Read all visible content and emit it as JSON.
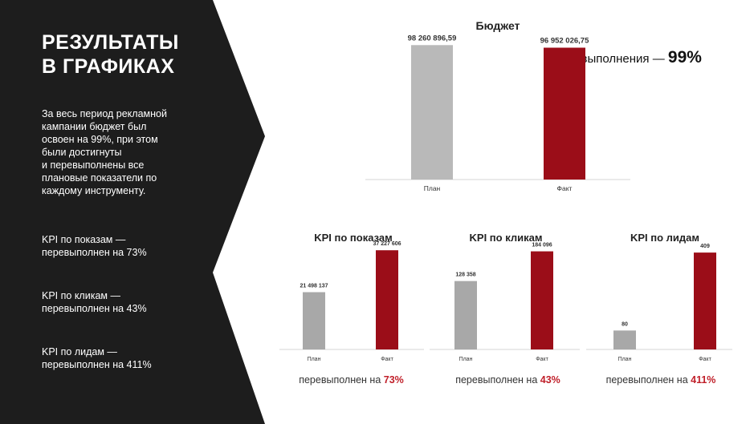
{
  "left_panel": {
    "title_line1": "РЕЗУЛЬТАТЫ",
    "title_line2": "В ГРАФИКАХ",
    "intro_lines": [
      "За весь период рекламной",
      "кампании бюджет был",
      "освоен на 99%, при этом",
      "были достигнуты",
      "и перевыполнены все",
      "плановые показатели по",
      "каждому инструменту."
    ],
    "kpi_notes": [
      {
        "line1": "KPI по показам —",
        "line2": "перевыполнен на 73%"
      },
      {
        "line1": "KPI по кликам —",
        "line2": "перевыполнен на 43%"
      },
      {
        "line1": "KPI по лидам —",
        "line2": "перевыполнен на 411%"
      }
    ]
  },
  "colors": {
    "panel": "#1d1d1d",
    "plan_bar": "#b9b9b9",
    "plan_bar_kpi": "#a8a8a8",
    "fact_bar": "#9b0d18",
    "accent_text": "#c0202a"
  },
  "budget": {
    "completion_prefix": "% выполнения — ",
    "completion_value": "99%"
  },
  "summaries": [
    {
      "prefix": "перевыполнен на ",
      "value": "73%"
    },
    {
      "prefix": "перевыполнен на ",
      "value": "43%"
    },
    {
      "prefix": "перевыполнен на ",
      "value": "411%"
    }
  ],
  "chart_data": [
    {
      "type": "bar",
      "title": "Бюджет",
      "categories": [
        "План",
        "Факт"
      ],
      "values": [
        98260896.59,
        96952026.75
      ],
      "data_labels": [
        "98 260 896,59",
        "96 952 026,75"
      ],
      "ylim": [
        30000000,
        100000000
      ],
      "grid": false
    },
    {
      "type": "bar",
      "title": "KPI по показам",
      "categories": [
        "План",
        "Факт"
      ],
      "values": [
        21498137,
        37227606
      ],
      "data_labels": [
        "21 498 137",
        "37 227 606"
      ],
      "ylim": [
        0,
        40000000
      ],
      "grid": false
    },
    {
      "type": "bar",
      "title": "KPI по кликам",
      "categories": [
        "План",
        "Факт"
      ],
      "values": [
        128358,
        184096
      ],
      "data_labels": [
        "128 358",
        "184 096"
      ],
      "ylim": [
        0,
        200000
      ],
      "grid": false
    },
    {
      "type": "bar",
      "title": "KPI по лидам",
      "categories": [
        "План",
        "Факт"
      ],
      "values": [
        80,
        409
      ],
      "data_labels": [
        "80",
        "409"
      ],
      "ylim": [
        0,
        450
      ],
      "grid": false
    }
  ]
}
